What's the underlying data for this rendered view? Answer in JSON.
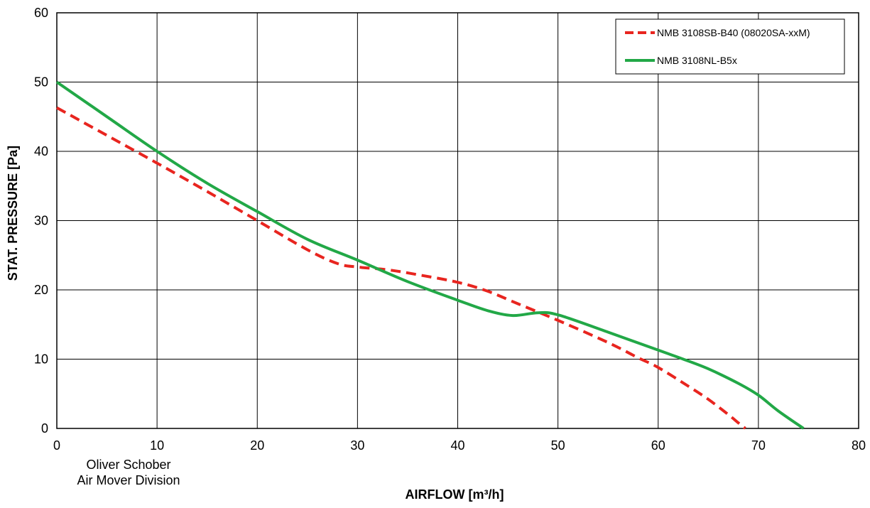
{
  "chart_data": {
    "type": "line",
    "title": "",
    "xlabel": "AIRFLOW [m³/h]",
    "ylabel": "STAT. PRESSURE [Pa]",
    "xlim": [
      0,
      80
    ],
    "ylim": [
      0,
      60
    ],
    "xticks": [
      0,
      10,
      20,
      30,
      40,
      50,
      60,
      70,
      80
    ],
    "yticks": [
      0,
      10,
      20,
      30,
      40,
      50,
      60
    ],
    "grid": true,
    "legend_position": "top-right",
    "annotation": [
      "Oliver Schober",
      "Air Mover Division"
    ],
    "series": [
      {
        "name": "NMB 3108SB-B40 (08020SA-xxM)",
        "color": "#e8251f",
        "style": "dashed",
        "points": [
          [
            0,
            46.3
          ],
          [
            5,
            42.3
          ],
          [
            10,
            38.3
          ],
          [
            15,
            34.2
          ],
          [
            20,
            30.0
          ],
          [
            25,
            25.8
          ],
          [
            28,
            23.8
          ],
          [
            30,
            23.3
          ],
          [
            33,
            22.9
          ],
          [
            36,
            22.2
          ],
          [
            40,
            21.1
          ],
          [
            43,
            19.8
          ],
          [
            46,
            18.0
          ],
          [
            50,
            15.6
          ],
          [
            55,
            12.4
          ],
          [
            58,
            10.2
          ],
          [
            60,
            8.8
          ],
          [
            63,
            6.1
          ],
          [
            65,
            4.2
          ],
          [
            67,
            2.0
          ],
          [
            68,
            0.8
          ],
          [
            68.7,
            0
          ]
        ]
      },
      {
        "name": "NMB 3108NL-B5x",
        "color": "#22a847",
        "style": "solid",
        "points": [
          [
            0,
            50.0
          ],
          [
            5,
            45.0
          ],
          [
            10,
            40.0
          ],
          [
            15,
            35.4
          ],
          [
            20,
            31.3
          ],
          [
            25,
            27.3
          ],
          [
            30,
            24.3
          ],
          [
            35,
            21.2
          ],
          [
            40,
            18.5
          ],
          [
            43,
            17.0
          ],
          [
            45.5,
            16.3
          ],
          [
            48,
            16.7
          ],
          [
            50,
            16.4
          ],
          [
            55,
            13.9
          ],
          [
            60,
            11.3
          ],
          [
            62.5,
            10.0
          ],
          [
            65,
            8.6
          ],
          [
            68,
            6.5
          ],
          [
            70,
            4.8
          ],
          [
            72,
            2.5
          ],
          [
            74.5,
            0
          ]
        ]
      }
    ]
  }
}
